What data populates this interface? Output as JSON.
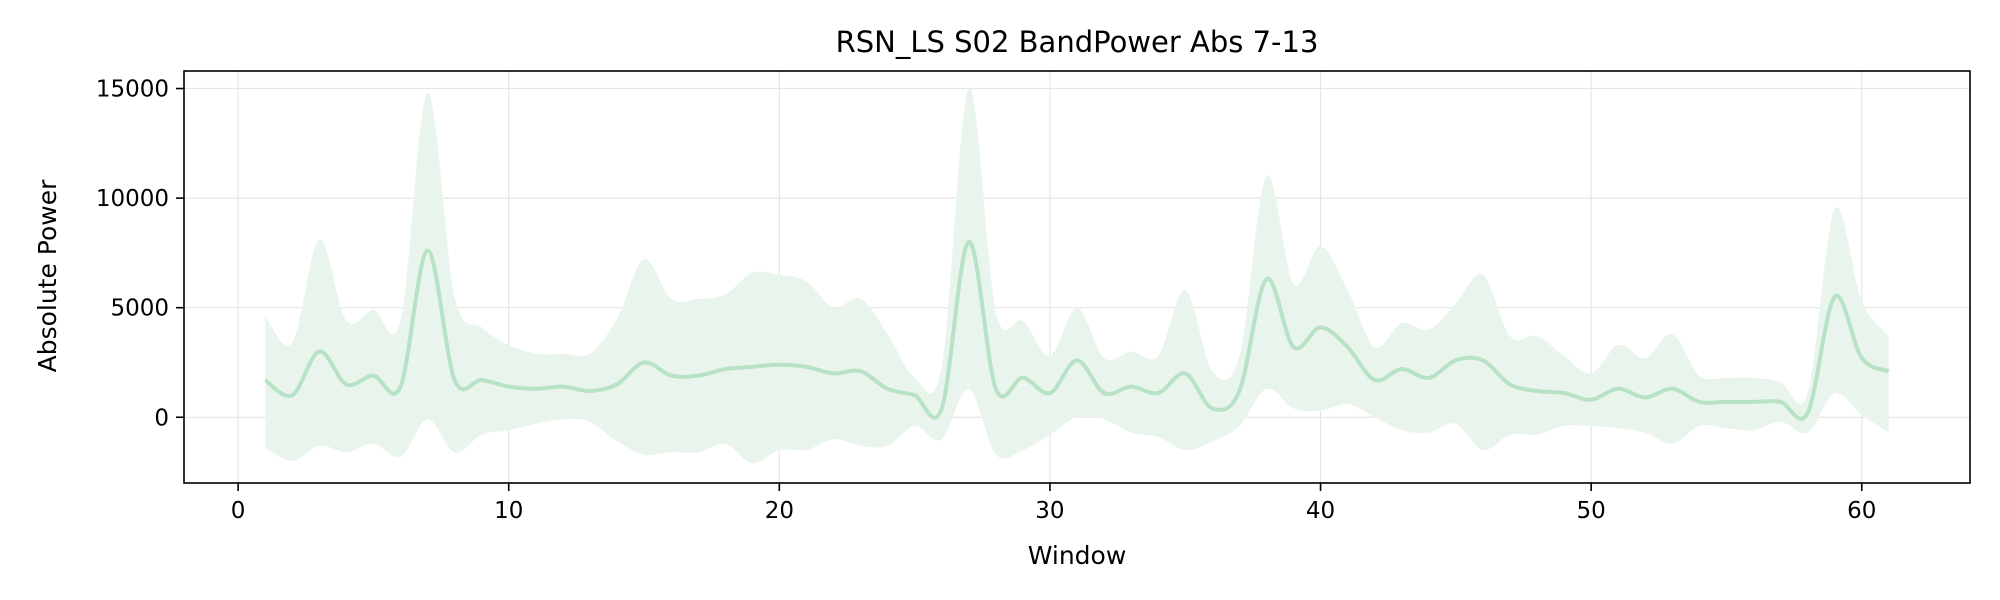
{
  "chart_data": {
    "type": "line",
    "title": "RSN_LS S02 BandPower Abs 7-13",
    "xlabel": "Window",
    "ylabel": "Absolute Power",
    "xlim": [
      -2,
      64
    ],
    "ylim": [
      -3000,
      15800
    ],
    "xticks": [
      0,
      10,
      20,
      30,
      40,
      50,
      60
    ],
    "yticks": [
      0,
      5000,
      10000,
      15000
    ],
    "grid": true,
    "legend": "none",
    "colors": {
      "line": "#b8e2c6",
      "band": "#e9f5ec",
      "grid": "#e6e6e6",
      "axis": "#000000"
    },
    "series": [
      {
        "x": [
          1,
          2,
          3,
          4,
          5,
          6,
          7,
          8,
          9,
          10,
          11,
          12,
          13,
          14,
          15,
          16,
          17,
          18,
          19,
          20,
          21,
          22,
          23,
          24,
          25,
          26,
          27,
          28,
          29,
          30,
          31,
          32,
          33,
          34,
          35,
          36,
          37,
          38,
          39,
          40,
          41,
          42,
          43,
          44,
          45,
          46,
          47,
          48,
          49,
          50,
          51,
          52,
          53,
          54,
          55,
          56,
          57,
          58,
          59,
          60,
          61
        ],
        "mean": [
          1700,
          1000,
          3000,
          1500,
          1900,
          1400,
          7600,
          1700,
          1700,
          1400,
          1300,
          1400,
          1200,
          1500,
          2500,
          1900,
          1900,
          2200,
          2300,
          2400,
          2300,
          2000,
          2100,
          1300,
          1000,
          400,
          8000,
          1300,
          1800,
          1100,
          2600,
          1100,
          1400,
          1100,
          2000,
          400,
          1200,
          6300,
          3200,
          4100,
          3200,
          1700,
          2200,
          1800,
          2600,
          2600,
          1500,
          1200,
          1100,
          800,
          1300,
          900,
          1300,
          700,
          700,
          700,
          700,
          200,
          5500,
          2700,
          2100
        ],
        "upper": [
          4600,
          3400,
          8100,
          4400,
          4900,
          4400,
          14800,
          5500,
          4100,
          3300,
          2900,
          2900,
          2900,
          4500,
          7200,
          5400,
          5400,
          5600,
          6600,
          6500,
          6200,
          5000,
          5400,
          3800,
          1800,
          2300,
          15000,
          4800,
          4400,
          2800,
          5000,
          2700,
          3000,
          2800,
          5800,
          2100,
          2800,
          11000,
          6100,
          7800,
          5800,
          3200,
          4300,
          4000,
          5200,
          6500,
          3700,
          3700,
          2800,
          2000,
          3300,
          2700,
          3800,
          1900,
          1800,
          1800,
          1600,
          1100,
          9500,
          5300,
          3700
        ],
        "lower": [
          -1400,
          -2000,
          -1300,
          -1600,
          -1200,
          -1800,
          -100,
          -1600,
          -800,
          -600,
          -300,
          -100,
          -200,
          -1100,
          -1700,
          -1600,
          -1600,
          -1200,
          -2100,
          -1500,
          -1500,
          -1000,
          -1300,
          -1300,
          -400,
          -1000,
          1300,
          -1700,
          -1500,
          -800,
          0,
          -100,
          -700,
          -900,
          -1500,
          -1100,
          -400,
          1300,
          400,
          300,
          600,
          0,
          -600,
          -700,
          -300,
          -1500,
          -800,
          -800,
          -400,
          -400,
          -500,
          -700,
          -1200,
          -400,
          -500,
          -600,
          -200,
          -700,
          1100,
          100,
          -700
        ]
      }
    ]
  }
}
